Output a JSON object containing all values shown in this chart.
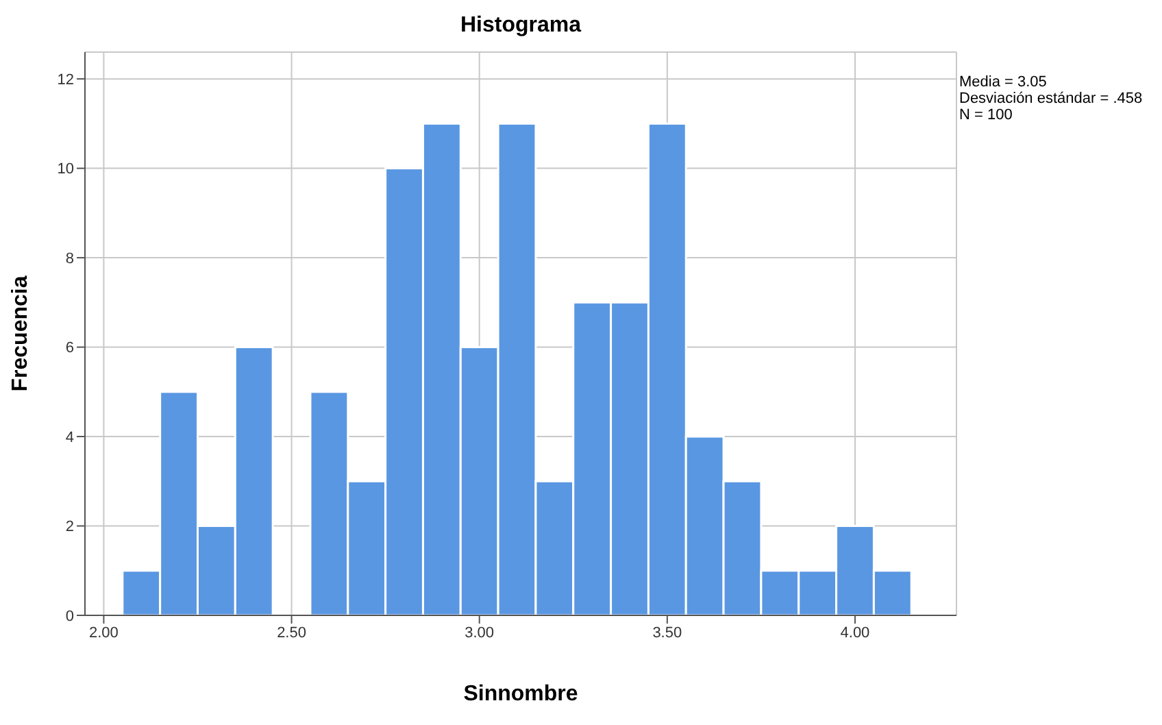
{
  "chart_data": {
    "type": "histogram",
    "title": "Histograma",
    "xlabel": "Sinnombre",
    "ylabel": "Frecuencia",
    "annotations": [
      "Media = 3.05",
      "Desviación estándar = .458",
      "N = 100"
    ],
    "bins": [
      2.05,
      2.15,
      2.25,
      2.35,
      2.45,
      2.55,
      2.65,
      2.75,
      2.85,
      2.95,
      3.05,
      3.15,
      3.25,
      3.35,
      3.45,
      3.55,
      3.65,
      3.75,
      3.85,
      3.95,
      4.05,
      4.15
    ],
    "values": [
      1,
      5,
      2,
      6,
      0,
      5,
      3,
      10,
      11,
      6,
      11,
      3,
      7,
      7,
      11,
      4,
      3,
      1,
      1,
      2,
      1
    ],
    "color": "#5a97e2",
    "xlim": [
      1.95,
      4.27
    ],
    "xticks": [
      {
        "value": 2,
        "label": "2.00"
      },
      {
        "value": 2.5,
        "label": "2.50"
      },
      {
        "value": 3,
        "label": "3.00"
      },
      {
        "value": 3.5,
        "label": "3.50"
      },
      {
        "value": 4,
        "label": "4.00"
      }
    ],
    "ylim": [
      0,
      12.6
    ],
    "yticks": [
      0,
      2,
      4,
      6,
      8,
      10,
      12
    ],
    "grid": true
  }
}
